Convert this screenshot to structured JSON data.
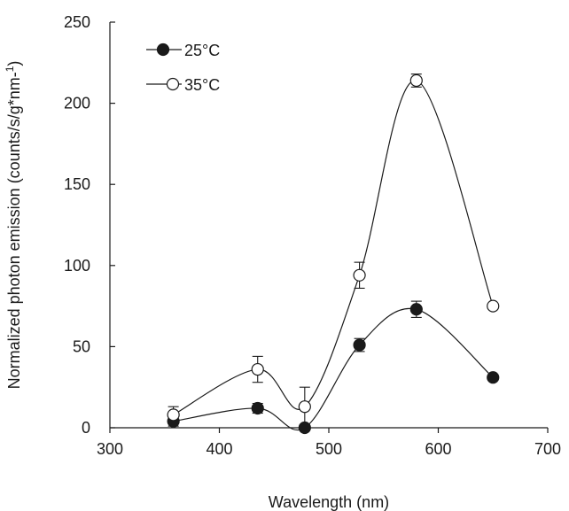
{
  "chart_data": {
    "type": "line",
    "xlabel": "Wavelength (nm)",
    "ylabel_main": "Normalized photon emission (counts/s/g*nm-",
    "ylabel_superscript": "1",
    "ylabel_close": ")",
    "xlim": [
      300,
      700
    ],
    "ylim": [
      0,
      250
    ],
    "xticks": [
      300,
      400,
      500,
      600,
      700
    ],
    "yticks": [
      0,
      50,
      100,
      150,
      200,
      250
    ],
    "grid": false,
    "legend_position": "top-left",
    "x": [
      358,
      435,
      478,
      528,
      580,
      650
    ],
    "series": [
      {
        "name": "25°C",
        "marker": "filled-circle",
        "color": "#1a1a1a",
        "values": [
          4,
          12,
          0,
          51,
          73,
          31
        ],
        "errors": [
          3,
          3,
          2,
          4,
          5,
          1
        ]
      },
      {
        "name": "35°C",
        "marker": "open-circle",
        "color": "#1a1a1a",
        "values": [
          8,
          36,
          13,
          94,
          214,
          75
        ],
        "errors": [
          5,
          8,
          12,
          8,
          4,
          1
        ]
      }
    ]
  }
}
